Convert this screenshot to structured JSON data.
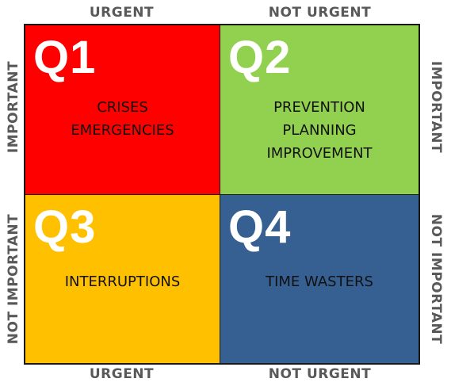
{
  "axes": {
    "top_left": "URGENT",
    "top_right": "NOT URGENT",
    "bottom_left": "URGENT",
    "bottom_right": "NOT URGENT",
    "left_upper": "IMPORTANT",
    "left_lower": "NOT IMPORTANT",
    "right_upper": "IMPORTANT",
    "right_lower": "NOT IMPORTANT"
  },
  "quadrants": [
    {
      "label": "Q1",
      "color": "#ff0000",
      "lines": [
        "CRISES",
        "EMERGENCIES"
      ]
    },
    {
      "label": "Q2",
      "color": "#92d050",
      "lines": [
        "PREVENTION",
        "PLANNING",
        "IMPROVEMENT"
      ]
    },
    {
      "label": "Q3",
      "color": "#ffc000",
      "lines": [
        "INTERRUPTIONS"
      ]
    },
    {
      "label": "Q4",
      "color": "#366092",
      "lines": [
        "TIME WASTERS"
      ]
    }
  ]
}
